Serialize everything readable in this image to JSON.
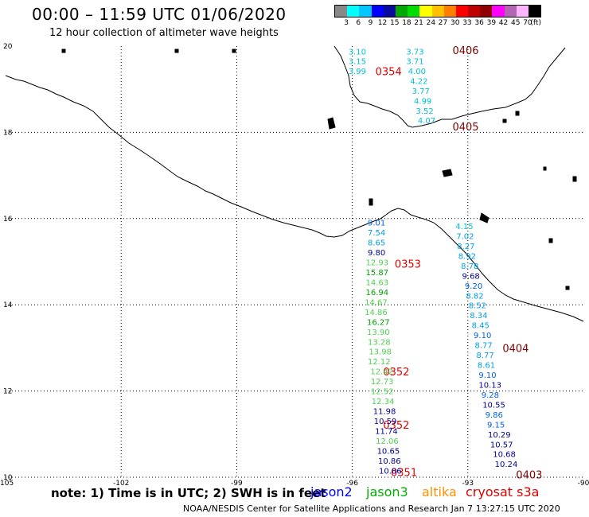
{
  "header": {
    "title": "00:00 – 11:59 UTC 01/06/2020",
    "subtitle": "12 hour collection of altimeter wave heights"
  },
  "color_scale": {
    "colors": [
      "#888888",
      "#00ffff",
      "#00c8ff",
      "#0000ff",
      "#0a0aa0",
      "#00a800",
      "#00dc00",
      "#ffff00",
      "#ffc000",
      "#ff8000",
      "#ff0000",
      "#c00000",
      "#900000",
      "#ff00ff",
      "#b464b4",
      "#ffb4ff",
      "#000000"
    ],
    "labels": [
      "3",
      "6",
      "9",
      "12",
      "15",
      "18",
      "21",
      "24",
      "27",
      "30",
      "33",
      "36",
      "39",
      "42",
      "45",
      "70",
      "(ft)"
    ]
  },
  "axes": {
    "lat_labels": [
      "20",
      "18",
      "16",
      "14",
      "12",
      "10"
    ],
    "lon_labels": [
      "-105",
      "-102",
      "-99",
      "-96",
      "-93",
      "-90"
    ]
  },
  "footer": {
    "note": "note:  1) Time is in UTC;  2) SWH is in feet",
    "sat_jason2": "jason2",
    "sat_jason3": "jason3",
    "sat_altika": "altika",
    "sat_cryosat": "cryosat s3a",
    "credit": "NOAA/NESDIS Center for Satellite Applications and Research    Jan  7 13:27:15 UTC 2020"
  },
  "map_data": {
    "time_labels": [
      {
        "text": "0406",
        "lon": -93.4,
        "lat": 19.91,
        "color": "#800000"
      },
      {
        "text": "0354",
        "lon": -95.4,
        "lat": 19.42,
        "color": "#e00000"
      },
      {
        "text": "0405",
        "lon": -93.4,
        "lat": 18.14,
        "color": "#800000"
      },
      {
        "text": "0353",
        "lon": -94.9,
        "lat": 14.95,
        "color": "#e00000"
      },
      {
        "text": "0404",
        "lon": -92.1,
        "lat": 13.0,
        "color": "#800000"
      },
      {
        "text": "0352",
        "lon": -95.2,
        "lat": 12.45,
        "color": "#e00000"
      },
      {
        "text": "0352",
        "lon": -95.2,
        "lat": 11.22,
        "color": "#e00000"
      },
      {
        "text": "0351",
        "lon": -95.0,
        "lat": 10.12,
        "color": "#e00000"
      },
      {
        "text": "0403",
        "lon": -91.75,
        "lat": 10.06,
        "color": "#800000"
      }
    ],
    "readings": [
      {
        "v": "3.10",
        "lon": -96.1,
        "lat": 19.88,
        "c": "#00c0d8"
      },
      {
        "v": "3.15",
        "lon": -96.1,
        "lat": 19.66,
        "c": "#00c0d8"
      },
      {
        "v": "3.99",
        "lon": -96.1,
        "lat": 19.43,
        "c": "#00c0d8"
      },
      {
        "v": "3.73",
        "lon": -94.6,
        "lat": 19.88,
        "c": "#00c0d8"
      },
      {
        "v": "3.71",
        "lon": -94.6,
        "lat": 19.66,
        "c": "#00c0d8"
      },
      {
        "v": "4.00",
        "lon": -94.55,
        "lat": 19.43,
        "c": "#00c0d8"
      },
      {
        "v": "4.22",
        "lon": -94.5,
        "lat": 19.2,
        "c": "#00c0d8"
      },
      {
        "v": "3.77",
        "lon": -94.45,
        "lat": 18.97,
        "c": "#00c0d8"
      },
      {
        "v": "4.99",
        "lon": -94.4,
        "lat": 18.74,
        "c": "#00c0d8"
      },
      {
        "v": "3.52",
        "lon": -94.35,
        "lat": 18.51,
        "c": "#00c0d8"
      },
      {
        "v": "4.07",
        "lon": -94.3,
        "lat": 18.28,
        "c": "#00c0d8"
      },
      {
        "v": "9.01",
        "lon": -95.6,
        "lat": 15.91,
        "c": "#0060e0"
      },
      {
        "v": "7.54",
        "lon": -95.6,
        "lat": 15.68,
        "c": "#00a0e8"
      },
      {
        "v": "8.65",
        "lon": -95.6,
        "lat": 15.45,
        "c": "#00a0e8"
      },
      {
        "v": "9.80",
        "lon": -95.6,
        "lat": 15.22,
        "c": "#000090"
      },
      {
        "v": "12.93",
        "lon": -95.65,
        "lat": 14.99,
        "c": "#50d050"
      },
      {
        "v": "15.87",
        "lon": -95.65,
        "lat": 14.76,
        "c": "#00a000"
      },
      {
        "v": "14.63",
        "lon": -95.65,
        "lat": 14.53,
        "c": "#50d050"
      },
      {
        "v": "16.94",
        "lon": -95.65,
        "lat": 14.3,
        "c": "#00a000"
      },
      {
        "v": "14.67",
        "lon": -95.68,
        "lat": 14.07,
        "c": "#50d050"
      },
      {
        "v": "14.86",
        "lon": -95.68,
        "lat": 13.84,
        "c": "#50d050"
      },
      {
        "v": "16.27",
        "lon": -95.62,
        "lat": 13.61,
        "c": "#00a000"
      },
      {
        "v": "13.90",
        "lon": -95.62,
        "lat": 13.38,
        "c": "#50d050"
      },
      {
        "v": "13.28",
        "lon": -95.6,
        "lat": 13.15,
        "c": "#50d050"
      },
      {
        "v": "13.98",
        "lon": -95.57,
        "lat": 12.92,
        "c": "#50d050"
      },
      {
        "v": "12.12",
        "lon": -95.6,
        "lat": 12.69,
        "c": "#50d050"
      },
      {
        "v": "12.42",
        "lon": -95.53,
        "lat": 12.46,
        "c": "#50d050"
      },
      {
        "v": "12.73",
        "lon": -95.52,
        "lat": 12.23,
        "c": "#50d050"
      },
      {
        "v": "12.52",
        "lon": -95.52,
        "lat": 12.0,
        "c": "#50d050"
      },
      {
        "v": "12.34",
        "lon": -95.5,
        "lat": 11.77,
        "c": "#50d050"
      },
      {
        "v": "11.98",
        "lon": -95.46,
        "lat": 11.54,
        "c": "#000090"
      },
      {
        "v": "10.59",
        "lon": -95.44,
        "lat": 11.31,
        "c": "#000090"
      },
      {
        "v": "11.74",
        "lon": -95.41,
        "lat": 11.08,
        "c": "#000090"
      },
      {
        "v": "12.06",
        "lon": -95.39,
        "lat": 10.85,
        "c": "#50d050"
      },
      {
        "v": "10.65",
        "lon": -95.36,
        "lat": 10.62,
        "c": "#000090"
      },
      {
        "v": "10.86",
        "lon": -95.33,
        "lat": 10.39,
        "c": "#000090"
      },
      {
        "v": "10.86",
        "lon": -95.31,
        "lat": 10.16,
        "c": "#000090"
      },
      {
        "v": "4.15",
        "lon": -93.32,
        "lat": 15.83,
        "c": "#00c0d8"
      },
      {
        "v": "7.02",
        "lon": -93.3,
        "lat": 15.6,
        "c": "#00a0e8"
      },
      {
        "v": "8.27",
        "lon": -93.28,
        "lat": 15.37,
        "c": "#00a0e8"
      },
      {
        "v": "8.92",
        "lon": -93.25,
        "lat": 15.14,
        "c": "#00a0e8"
      },
      {
        "v": "8.78",
        "lon": -93.18,
        "lat": 14.91,
        "c": "#00a0e8"
      },
      {
        "v": "9.68",
        "lon": -93.15,
        "lat": 14.68,
        "c": "#000090"
      },
      {
        "v": "9.20",
        "lon": -93.08,
        "lat": 14.45,
        "c": "#0060e0"
      },
      {
        "v": "8.82",
        "lon": -93.05,
        "lat": 14.22,
        "c": "#00a0e8"
      },
      {
        "v": "8.52",
        "lon": -92.98,
        "lat": 13.99,
        "c": "#00a0e8"
      },
      {
        "v": "8.34",
        "lon": -92.95,
        "lat": 13.76,
        "c": "#00a0e8"
      },
      {
        "v": "8.45",
        "lon": -92.9,
        "lat": 13.53,
        "c": "#00a0e8"
      },
      {
        "v": "9.10",
        "lon": -92.85,
        "lat": 13.3,
        "c": "#0060e0"
      },
      {
        "v": "8.77",
        "lon": -92.82,
        "lat": 13.07,
        "c": "#00a0e8"
      },
      {
        "v": "8.77",
        "lon": -92.78,
        "lat": 12.84,
        "c": "#00a0e8"
      },
      {
        "v": "8.61",
        "lon": -92.75,
        "lat": 12.61,
        "c": "#00a0e8"
      },
      {
        "v": "9.10",
        "lon": -92.72,
        "lat": 12.38,
        "c": "#0060e0"
      },
      {
        "v": "10.13",
        "lon": -92.72,
        "lat": 12.15,
        "c": "#000090"
      },
      {
        "v": "9.28",
        "lon": -92.65,
        "lat": 11.92,
        "c": "#0060e0"
      },
      {
        "v": "10.55",
        "lon": -92.62,
        "lat": 11.69,
        "c": "#000090"
      },
      {
        "v": "9.86",
        "lon": -92.55,
        "lat": 11.46,
        "c": "#0060e0"
      },
      {
        "v": "9.15",
        "lon": -92.5,
        "lat": 11.23,
        "c": "#0060e0"
      },
      {
        "v": "10.29",
        "lon": -92.48,
        "lat": 11.0,
        "c": "#000090"
      },
      {
        "v": "10.57",
        "lon": -92.42,
        "lat": 10.77,
        "c": "#000090"
      },
      {
        "v": "10.68",
        "lon": -92.35,
        "lat": 10.54,
        "c": "#000090"
      },
      {
        "v": "10.24",
        "lon": -92.3,
        "lat": 10.31,
        "c": "#000090"
      }
    ]
  }
}
